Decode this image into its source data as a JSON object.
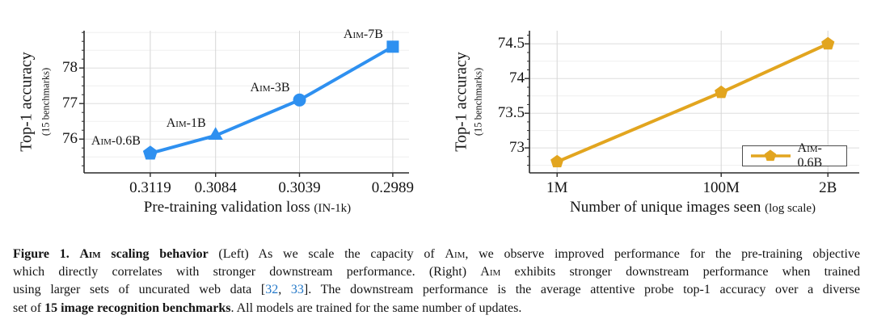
{
  "colors": {
    "line_blue": "#2E90F0",
    "line_orange": "#E2A51F",
    "citation": "#2277C8",
    "spine": "#2a2a2a",
    "grid_major": "#dedede",
    "grid_minor": "#efefef",
    "grid_vertical": "#d6d6d6"
  },
  "chart_data": [
    {
      "type": "line",
      "title": "",
      "xlabel": "Pre-training validation loss",
      "xlabel_note": "(IN-1k)",
      "ylabel": "Top-1 accuracy",
      "ylabel_note": "(15 benchmarks)",
      "x_axis": "linear_reversed",
      "xlim": [
        0.31545,
        0.29803
      ],
      "x_ticks": [
        0.3119,
        0.3084,
        0.3039,
        0.2989
      ],
      "x_tick_labels": [
        "0.3119",
        "0.3084",
        "0.3039",
        "0.2989"
      ],
      "ylim": [
        75.05,
        79.05
      ],
      "y_ticks": [
        76,
        77,
        78
      ],
      "y_tick_labels": [
        "76",
        "77",
        "78"
      ],
      "y_minor_tick_step": 0.25,
      "y_minor_grid_step": 0.5,
      "grid": true,
      "legend": null,
      "series": [
        {
          "name": "Aim",
          "color_key": "line_blue",
          "x": [
            0.3119,
            0.3084,
            0.3039,
            0.2989
          ],
          "y": [
            75.6,
            76.1,
            77.1,
            78.6
          ],
          "markers": [
            "pentagon",
            "triangle",
            "circle",
            "square"
          ],
          "point_labels": [
            "Aim-0.6B",
            "Aim-1B",
            "Aim-3B",
            "Aim-7B"
          ]
        }
      ]
    },
    {
      "type": "line",
      "title": "",
      "xlabel": "Number of unique images seen",
      "xlabel_note": "(log scale)",
      "ylabel": "Top-1 accuracy",
      "ylabel_note": "(15 benchmarks)",
      "x_axis": "log",
      "xlim_log10": [
        5.663,
        9.683
      ],
      "x_ticks": [
        1000000,
        100000000,
        2000000000
      ],
      "x_tick_labels": [
        "1M",
        "100M",
        "2B"
      ],
      "ylim": [
        72.64,
        74.69
      ],
      "y_ticks": [
        73,
        73.5,
        74,
        74.5
      ],
      "y_tick_labels": [
        "73",
        "73.5",
        "74",
        "74.5"
      ],
      "y_minor_tick_step": 0.125,
      "y_minor_grid_step": 0.25,
      "grid": true,
      "legend": {
        "label": "Aim-0.6B",
        "position": "lower right"
      },
      "series": [
        {
          "name": "Aim-0.6B",
          "color_key": "line_orange",
          "x": [
            1000000,
            100000000,
            2000000000
          ],
          "y": [
            72.8,
            73.8,
            74.5
          ],
          "markers": [
            "pentagon",
            "pentagon",
            "pentagon"
          ],
          "point_labels": []
        }
      ]
    }
  ],
  "caption": {
    "lines": [
      {
        "justify": true,
        "segments": [
          {
            "t": "Figure 1. ",
            "b": 1
          },
          {
            "t": "Aim",
            "b": 1,
            "sc": 1
          },
          {
            "t": " scaling behavior",
            "b": 1
          },
          {
            "t": " (Left) As we scale the capacity of "
          },
          {
            "t": "Aim",
            "sc": 1
          },
          {
            "t": ", we observe improved performance for the pre-training objective"
          }
        ]
      },
      {
        "justify": true,
        "segments": [
          {
            "t": "which directly correlates with stronger downstream performance.  (Right) "
          },
          {
            "t": "Aim",
            "sc": 1
          },
          {
            "t": " exhibits stronger downstream performance when trained"
          }
        ]
      },
      {
        "justify": true,
        "segments": [
          {
            "t": "using larger sets of uncurated web data ["
          },
          {
            "t": "32",
            "cite": 1
          },
          {
            "t": ", "
          },
          {
            "t": "33",
            "cite": 1
          },
          {
            "t": "]. The downstream performance is the average attentive probe top-1 accuracy over a diverse"
          }
        ]
      },
      {
        "justify": false,
        "segments": [
          {
            "t": "set of "
          },
          {
            "t": "15 image recognition benchmarks",
            "b": 1
          },
          {
            "t": ". All models are trained for the same number of updates."
          }
        ]
      }
    ]
  }
}
